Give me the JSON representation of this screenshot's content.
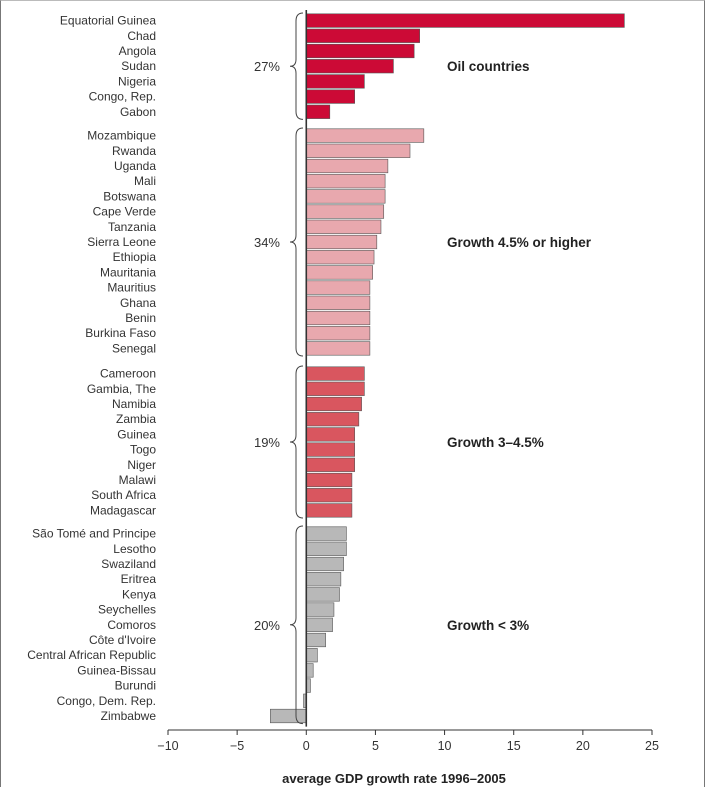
{
  "chart_data": {
    "type": "bar",
    "orientation": "horizontal",
    "title": "",
    "xlabel": "average GDP growth rate 1996–2005",
    "ylabel": "",
    "xlim": [
      -10,
      25
    ],
    "xticks": [
      "−10",
      "−5",
      "0",
      "5",
      "10",
      "15",
      "20",
      "25"
    ],
    "grid": false,
    "groups": [
      {
        "name": "Oil countries",
        "share": "27%",
        "color": "#cc0a36",
        "categories": [
          "Equatorial Guinea",
          "Chad",
          "Angola",
          "Sudan",
          "Nigeria",
          "Congo, Rep.",
          "Gabon"
        ],
        "values": [
          23.0,
          8.2,
          7.8,
          6.3,
          4.2,
          3.5,
          1.7
        ]
      },
      {
        "name": "Growth 4.5% or higher",
        "share": "34%",
        "color": "#e8a8ae",
        "categories": [
          "Mozambique",
          "Rwanda",
          "Uganda",
          "Mali",
          "Botswana",
          "Cape Verde",
          "Tanzania",
          "Sierra Leone",
          "Ethiopia",
          "Mauritania",
          "Mauritius",
          "Ghana",
          "Benin",
          "Burkina Faso",
          "Senegal"
        ],
        "values": [
          8.5,
          7.5,
          5.9,
          5.7,
          5.7,
          5.6,
          5.4,
          5.1,
          4.9,
          4.8,
          4.6,
          4.6,
          4.6,
          4.6,
          4.6
        ]
      },
      {
        "name": "Growth 3–4.5%",
        "share": "19%",
        "color": "#d9565f",
        "categories": [
          "Cameroon",
          "Gambia, The",
          "Namibia",
          "Zambia",
          "Guinea",
          "Togo",
          "Niger",
          "Malawi",
          "South Africa",
          "Madagascar"
        ],
        "values": [
          4.2,
          4.2,
          4.0,
          3.8,
          3.5,
          3.5,
          3.5,
          3.3,
          3.3,
          3.3
        ]
      },
      {
        "name": "Growth < 3%",
        "share": "20%",
        "color": "#b8b8b8",
        "categories": [
          "São Tomé and Principe",
          "Lesotho",
          "Swaziland",
          "Eritrea",
          "Kenya",
          "Seychelles",
          "Comoros",
          "Côte d'Ivoire",
          "Central African Republic",
          "Guinea-Bissau",
          "Burundi",
          "Congo, Dem. Rep.",
          "Zimbabwe"
        ],
        "values": [
          2.9,
          2.9,
          2.7,
          2.5,
          2.4,
          2.0,
          1.9,
          1.4,
          0.8,
          0.5,
          0.3,
          -0.2,
          -2.6
        ]
      }
    ]
  }
}
